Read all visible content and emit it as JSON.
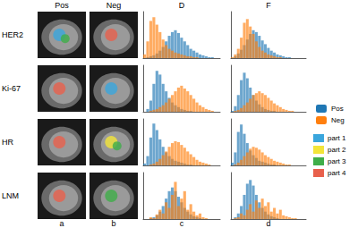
{
  "figure": {
    "row_labels": [
      "HER2",
      "Ki-67",
      "HR",
      "LNM"
    ],
    "column_headers": [
      "Pos",
      "Neg",
      "D",
      "F"
    ],
    "panel_labels": [
      "a",
      "b",
      "c",
      "d"
    ],
    "image_legend": [
      {
        "name": "part 1",
        "color": "#3aa6dd"
      },
      {
        "name": "part 2",
        "color": "#f2e53a"
      },
      {
        "name": "part 3",
        "color": "#3fae49"
      },
      {
        "name": "part 4",
        "color": "#e8604c"
      }
    ]
  },
  "chart_data": [
    {
      "type": "histogram",
      "bins": [
        0,
        0.04,
        0.08,
        0.12,
        0.16,
        0.2,
        0.24,
        0.28,
        0.32,
        0.36,
        0.4,
        0.44,
        0.48,
        0.52,
        0.56,
        0.6,
        0.64,
        0.68,
        0.72,
        0.76,
        0.8,
        0.84,
        0.88,
        0.92,
        0.96,
        1
      ],
      "xlim": [
        0,
        1
      ],
      "ylim": [
        0,
        50
      ],
      "tick_labels": false,
      "legend": "right",
      "series": [
        {
          "name": "Pos",
          "color": "#1f77b4",
          "values": [
            0,
            1,
            2,
            3,
            5,
            8,
            12,
            18,
            24,
            28,
            30,
            27,
            22,
            18,
            14,
            10,
            8,
            6,
            4,
            3,
            2,
            1,
            1,
            0,
            0
          ]
        },
        {
          "name": "Neg",
          "color": "#ff7f0e",
          "values": [
            4,
            18,
            40,
            44,
            36,
            28,
            20,
            14,
            10,
            8,
            6,
            5,
            4,
            3,
            2,
            2,
            1,
            1,
            0,
            0,
            0,
            0,
            0,
            0,
            0
          ]
        }
      ]
    },
    {
      "type": "histogram",
      "bins": [
        0,
        0.04,
        0.08,
        0.12,
        0.16,
        0.2,
        0.24,
        0.28,
        0.32,
        0.36,
        0.4,
        0.44,
        0.48,
        0.52,
        0.56,
        0.6,
        0.64,
        0.68,
        0.72,
        0.76,
        0.8,
        0.84,
        0.88,
        0.92,
        0.96,
        1
      ],
      "xlim": [
        0,
        1
      ],
      "ylim": [
        0,
        50
      ],
      "tick_labels": false,
      "series": [
        {
          "name": "Pos",
          "color": "#1f77b4",
          "values": [
            0,
            2,
            5,
            9,
            14,
            20,
            26,
            30,
            28,
            24,
            19,
            15,
            11,
            8,
            6,
            4,
            3,
            2,
            1,
            1,
            0,
            0,
            0,
            0,
            0
          ]
        },
        {
          "name": "Neg",
          "color": "#ff7f0e",
          "values": [
            1,
            4,
            10,
            22,
            38,
            42,
            34,
            26,
            18,
            12,
            8,
            6,
            4,
            3,
            2,
            1,
            1,
            0,
            0,
            0,
            0,
            0,
            0,
            0,
            0
          ]
        }
      ]
    },
    {
      "type": "histogram",
      "bins": [
        0,
        0.04,
        0.08,
        0.12,
        0.16,
        0.2,
        0.24,
        0.28,
        0.32,
        0.36,
        0.4,
        0.44,
        0.48,
        0.52,
        0.56,
        0.6,
        0.64,
        0.68,
        0.72,
        0.76,
        0.8,
        0.84,
        0.88,
        0.92,
        0.96,
        1
      ],
      "xlim": [
        0,
        1
      ],
      "ylim": [
        0,
        50
      ],
      "tick_labels": false,
      "series": [
        {
          "name": "Pos",
          "color": "#1f77b4",
          "values": [
            0,
            3,
            12,
            30,
            44,
            40,
            30,
            22,
            15,
            10,
            7,
            5,
            3,
            2,
            1,
            1,
            0,
            0,
            0,
            0,
            0,
            0,
            0,
            0,
            0
          ]
        },
        {
          "name": "Neg",
          "color": "#ff7f0e",
          "values": [
            0,
            0,
            1,
            2,
            3,
            5,
            7,
            10,
            14,
            18,
            22,
            26,
            28,
            25,
            22,
            18,
            14,
            10,
            7,
            5,
            3,
            2,
            1,
            0,
            0
          ]
        }
      ]
    },
    {
      "type": "histogram",
      "bins": [
        0,
        0.04,
        0.08,
        0.12,
        0.16,
        0.2,
        0.24,
        0.28,
        0.32,
        0.36,
        0.4,
        0.44,
        0.48,
        0.52,
        0.56,
        0.6,
        0.64,
        0.68,
        0.72,
        0.76,
        0.8,
        0.84,
        0.88,
        0.92,
        0.96,
        1
      ],
      "xlim": [
        0,
        1
      ],
      "ylim": [
        0,
        50
      ],
      "tick_labels": false,
      "series": [
        {
          "name": "Pos",
          "color": "#1f77b4",
          "values": [
            1,
            6,
            18,
            34,
            42,
            36,
            26,
            18,
            12,
            8,
            5,
            3,
            2,
            1,
            1,
            0,
            0,
            0,
            0,
            0,
            0,
            0,
            0,
            0,
            0
          ]
        },
        {
          "name": "Neg",
          "color": "#ff7f0e",
          "values": [
            0,
            1,
            2,
            4,
            7,
            10,
            14,
            18,
            20,
            22,
            20,
            18,
            15,
            12,
            9,
            7,
            5,
            3,
            2,
            1,
            1,
            0,
            0,
            0,
            0
          ]
        }
      ]
    },
    {
      "type": "histogram",
      "bins": [
        0,
        0.04,
        0.08,
        0.12,
        0.16,
        0.2,
        0.24,
        0.28,
        0.32,
        0.36,
        0.4,
        0.44,
        0.48,
        0.52,
        0.56,
        0.6,
        0.64,
        0.68,
        0.72,
        0.76,
        0.8,
        0.84,
        0.88,
        0.92,
        0.96,
        1
      ],
      "xlim": [
        0,
        1
      ],
      "ylim": [
        0,
        50
      ],
      "tick_labels": false,
      "series": [
        {
          "name": "Pos",
          "color": "#1f77b4",
          "values": [
            2,
            10,
            30,
            45,
            38,
            28,
            20,
            14,
            10,
            7,
            5,
            4,
            3,
            2,
            1,
            1,
            0,
            0,
            0,
            0,
            0,
            0,
            0,
            0,
            0
          ]
        },
        {
          "name": "Neg",
          "color": "#ff7f0e",
          "values": [
            0,
            0,
            1,
            2,
            4,
            7,
            11,
            15,
            20,
            24,
            26,
            25,
            22,
            19,
            15,
            12,
            9,
            6,
            4,
            3,
            2,
            1,
            0,
            0,
            0
          ]
        }
      ]
    },
    {
      "type": "histogram",
      "bins": [
        0,
        0.04,
        0.08,
        0.12,
        0.16,
        0.2,
        0.24,
        0.28,
        0.32,
        0.36,
        0.4,
        0.44,
        0.48,
        0.52,
        0.56,
        0.6,
        0.64,
        0.68,
        0.72,
        0.76,
        0.8,
        0.84,
        0.88,
        0.92,
        0.96,
        1
      ],
      "xlim": [
        0,
        1
      ],
      "ylim": [
        0,
        50
      ],
      "tick_labels": false,
      "series": [
        {
          "name": "Pos",
          "color": "#1f77b4",
          "values": [
            3,
            14,
            36,
            44,
            34,
            24,
            16,
            11,
            8,
            5,
            4,
            3,
            2,
            1,
            1,
            0,
            0,
            0,
            0,
            0,
            0,
            0,
            0,
            0,
            0
          ]
        },
        {
          "name": "Neg",
          "color": "#ff7f0e",
          "values": [
            0,
            1,
            3,
            6,
            10,
            14,
            18,
            20,
            19,
            17,
            14,
            11,
            9,
            7,
            5,
            4,
            3,
            2,
            1,
            1,
            0,
            0,
            0,
            0,
            0
          ]
        }
      ]
    },
    {
      "type": "histogram",
      "bins": [
        0,
        0.04,
        0.08,
        0.12,
        0.16,
        0.2,
        0.24,
        0.28,
        0.32,
        0.36,
        0.4,
        0.44,
        0.48,
        0.52,
        0.56,
        0.6,
        0.64,
        0.68,
        0.72,
        0.76,
        0.8,
        0.84,
        0.88,
        0.92,
        0.96,
        1
      ],
      "xlim": [
        0,
        1
      ],
      "ylim": [
        0,
        50
      ],
      "tick_labels": false,
      "series": [
        {
          "name": "Pos",
          "color": "#1f77b4",
          "values": [
            0,
            0,
            1,
            2,
            4,
            8,
            14,
            22,
            30,
            34,
            30,
            24,
            18,
            12,
            8,
            5,
            3,
            2,
            1,
            0,
            0,
            0,
            0,
            0,
            0
          ]
        },
        {
          "name": "Neg",
          "color": "#ff7f0e",
          "values": [
            0,
            0,
            2,
            1,
            5,
            10,
            6,
            18,
            12,
            26,
            40,
            14,
            22,
            30,
            10,
            16,
            8,
            4,
            6,
            2,
            1,
            0,
            0,
            0,
            0
          ]
        }
      ]
    },
    {
      "type": "histogram",
      "bins": [
        0,
        0.04,
        0.08,
        0.12,
        0.16,
        0.2,
        0.24,
        0.28,
        0.32,
        0.36,
        0.4,
        0.44,
        0.48,
        0.52,
        0.56,
        0.6,
        0.64,
        0.68,
        0.72,
        0.76,
        0.8,
        0.84,
        0.88,
        0.92,
        0.96,
        1
      ],
      "xlim": [
        0,
        1
      ],
      "ylim": [
        0,
        50
      ],
      "tick_labels": false,
      "series": [
        {
          "name": "Pos",
          "color": "#1f77b4",
          "values": [
            0,
            2,
            6,
            14,
            26,
            38,
            42,
            36,
            26,
            18,
            12,
            8,
            5,
            3,
            2,
            1,
            0,
            0,
            0,
            0,
            0,
            0,
            0,
            0,
            0
          ]
        },
        {
          "name": "Neg",
          "color": "#ff7f0e",
          "values": [
            0,
            1,
            2,
            6,
            4,
            10,
            16,
            8,
            20,
            12,
            22,
            14,
            18,
            8,
            12,
            6,
            10,
            4,
            3,
            2,
            1,
            1,
            0,
            0,
            0
          ]
        }
      ]
    }
  ]
}
